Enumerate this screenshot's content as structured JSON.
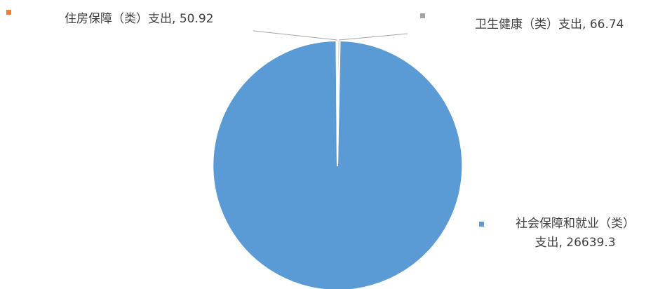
{
  "chart_data": {
    "type": "pie",
    "title": "",
    "categories": [
      "社会保障和就业（类）支出",
      "住房保障（类）支出",
      "卫生健康（类）支出"
    ],
    "values": [
      26639.3,
      50.92,
      66.74
    ],
    "colors": [
      "#5b9bd5",
      "#ed7d31",
      "#a5a5a5"
    ],
    "separator_color": "#ffffff",
    "leader_line_color": "#a6a6a6",
    "data_labels": [
      {
        "name_lines": [
          "社会保障和就业（类）",
          "支出"
        ],
        "value_text": "26639.3"
      },
      {
        "name_lines": [
          "住房保障（类）支出"
        ],
        "value_text": "50.92"
      },
      {
        "name_lines": [
          "卫生健康（类）支出"
        ],
        "value_text": "66.74"
      }
    ],
    "label_separator": ", "
  }
}
